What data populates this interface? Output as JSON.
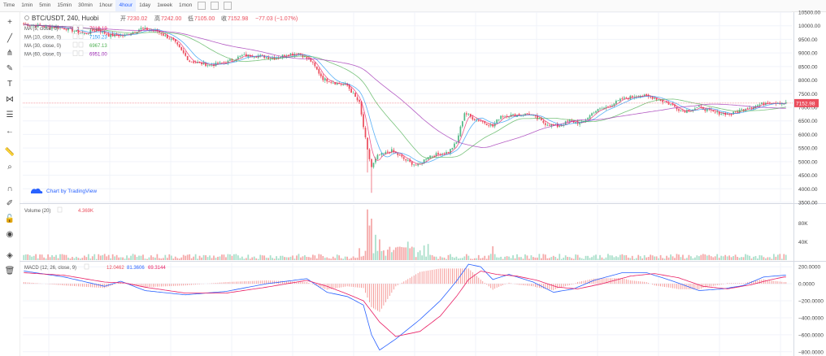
{
  "timeframes": [
    {
      "label": "Time",
      "active": false
    },
    {
      "label": "1min",
      "active": false
    },
    {
      "label": "5min",
      "active": false
    },
    {
      "label": "15min",
      "active": false
    },
    {
      "label": "30min",
      "active": false
    },
    {
      "label": "1hour",
      "active": false
    },
    {
      "label": "4hour",
      "active": true
    },
    {
      "label": "1day",
      "active": false
    },
    {
      "label": "1week",
      "active": false
    },
    {
      "label": "1mon",
      "active": false
    }
  ],
  "toolbar_icons": [
    "crosshair-icon",
    "trend-line-icon",
    "pitchfork-icon",
    "brush-icon",
    "text-icon",
    "pattern-icon",
    "fib-icon",
    "arrow-icon",
    "ruler-icon",
    "zoom-icon",
    "magnet-icon",
    "lock-drawings-icon",
    "lock-icon",
    "eye-icon",
    "layers-icon",
    "trash-icon"
  ],
  "legend": {
    "symbol": "BTC/USDT, 240, Huobi",
    "open_label": "开",
    "open": "7230.02",
    "high_label": "高",
    "high": "7242.00",
    "low_label": "低",
    "low": "7105.00",
    "close_label": "收",
    "close": "7152.98",
    "change": "−77.03 (−1.07%)"
  },
  "ma_legend": [
    {
      "label": "MA (5, close, 0)",
      "value": "7210.19",
      "color": "#e91e63"
    },
    {
      "label": "MA (10, close, 0)",
      "value": "7150.23",
      "color": "#2196f3"
    },
    {
      "label": "MA (30, close, 0)",
      "value": "6967.13",
      "color": "#4caf50"
    },
    {
      "label": "MA (60, close, 0)",
      "value": "6951.00",
      "color": "#9c27b0"
    }
  ],
  "watermark": "Chart by TradingView",
  "volume_legend": {
    "label": "Volume (20)",
    "value": "4.369K"
  },
  "macd_legend": {
    "label": "MACD (12, 26, close, 9)",
    "hist": "12.0462",
    "macd": "81.3606",
    "signal": "69.3144"
  },
  "price_tag": "7152.98",
  "colors": {
    "up": "#53b987",
    "down": "#eb4d5c",
    "up_vol": "#a9dfca",
    "down_vol": "#f5a8a8",
    "ma5": "#e91e63",
    "ma10": "#2196f3",
    "ma30": "#4caf50",
    "ma60": "#9c27b0",
    "macd": "#2962ff",
    "signal": "#e91e63",
    "hist": "#ef5350",
    "grid": "#f0f3fa"
  },
  "chart_data": [
    {
      "type": "candlestick",
      "title": "BTC/USDT, 240, Huobi",
      "y_ticks": [
        10500,
        10000,
        9500,
        9000,
        8500,
        8000,
        7500,
        7000,
        6500,
        6000,
        5500,
        5000,
        4500,
        4000,
        3500
      ],
      "y_tick_labels": [
        "10500.00",
        "10000.00",
        "9500.00",
        "9000.00",
        "8500.00",
        "8000.00",
        "7500.00",
        "7000.00",
        "6500.00",
        "6000.00",
        "5500.00",
        "5000.00",
        "4500.00",
        "4000.00",
        "3500.00"
      ],
      "ylim": [
        3500,
        10500
      ],
      "last_price": 7152.98,
      "close_keypoints": [
        [
          0,
          10050
        ],
        [
          10,
          9980
        ],
        [
          20,
          9920
        ],
        [
          30,
          9700
        ],
        [
          36,
          9880
        ],
        [
          42,
          9650
        ],
        [
          50,
          9650
        ],
        [
          58,
          9900
        ],
        [
          66,
          9800
        ],
        [
          74,
          9450
        ],
        [
          82,
          8700
        ],
        [
          92,
          8550
        ],
        [
          100,
          8650
        ],
        [
          108,
          8900
        ],
        [
          116,
          8900
        ],
        [
          124,
          8800
        ],
        [
          130,
          8950
        ],
        [
          136,
          9000
        ],
        [
          142,
          8700
        ],
        [
          148,
          8050
        ],
        [
          154,
          7900
        ],
        [
          160,
          7800
        ],
        [
          166,
          7150
        ],
        [
          170,
          5400
        ],
        [
          172,
          4800
        ],
        [
          175,
          5200
        ],
        [
          182,
          5400
        ],
        [
          190,
          5000
        ],
        [
          195,
          4850
        ],
        [
          200,
          5200
        ],
        [
          210,
          5350
        ],
        [
          214,
          5700
        ],
        [
          218,
          6800
        ],
        [
          222,
          6600
        ],
        [
          226,
          6500
        ],
        [
          232,
          6300
        ],
        [
          236,
          6700
        ],
        [
          240,
          6700
        ],
        [
          250,
          6750
        ],
        [
          258,
          6400
        ],
        [
          264,
          6300
        ],
        [
          270,
          6500
        ],
        [
          276,
          6400
        ],
        [
          282,
          6850
        ],
        [
          288,
          7000
        ],
        [
          296,
          7300
        ],
        [
          304,
          7450
        ],
        [
          312,
          7350
        ],
        [
          320,
          7100
        ],
        [
          326,
          6850
        ],
        [
          334,
          7000
        ],
        [
          342,
          6800
        ],
        [
          350,
          6750
        ],
        [
          356,
          6950
        ],
        [
          362,
          7050
        ],
        [
          368,
          7200
        ],
        [
          376,
          7150
        ]
      ],
      "low_spike": {
        "index": 172,
        "low": 3850
      }
    },
    {
      "type": "bar",
      "title": "Volume (20)",
      "y_tick_labels": [
        "80K",
        "40K"
      ],
      "y_ticks": [
        80000,
        40000
      ],
      "ylim": [
        0,
        120000
      ],
      "spikes": [
        [
          170,
          110000
        ],
        [
          171,
          75000
        ],
        [
          172,
          90000
        ],
        [
          174,
          55000
        ],
        [
          176,
          45000
        ],
        [
          190,
          40000
        ],
        [
          200,
          35000
        ],
        [
          232,
          30000
        ]
      ],
      "base_volume": 8000
    },
    {
      "type": "line",
      "title": "MACD (12, 26, close, 9)",
      "y_ticks": [
        200,
        0,
        -200,
        -400,
        -600,
        -800
      ],
      "y_tick_labels": [
        "200.0000",
        "0.0000",
        "−200.0000",
        "−400.0000",
        "−600.0000",
        "−800.0000"
      ],
      "ylim": [
        -850,
        250
      ],
      "series": [
        {
          "name": "MACD",
          "points": [
            [
              0,
              150
            ],
            [
              20,
              80
            ],
            [
              40,
              -30
            ],
            [
              48,
              30
            ],
            [
              60,
              -80
            ],
            [
              80,
              -130
            ],
            [
              100,
              -90
            ],
            [
              120,
              0
            ],
            [
              140,
              60
            ],
            [
              150,
              -100
            ],
            [
              160,
              -150
            ],
            [
              168,
              -250
            ],
            [
              172,
              -600
            ],
            [
              176,
              -780
            ],
            [
              184,
              -650
            ],
            [
              196,
              -420
            ],
            [
              206,
              -200
            ],
            [
              214,
              30
            ],
            [
              220,
              230
            ],
            [
              226,
              200
            ],
            [
              232,
              50
            ],
            [
              240,
              110
            ],
            [
              252,
              20
            ],
            [
              262,
              -100
            ],
            [
              272,
              -60
            ],
            [
              282,
              40
            ],
            [
              296,
              130
            ],
            [
              308,
              130
            ],
            [
              320,
              40
            ],
            [
              334,
              -80
            ],
            [
              346,
              -60
            ],
            [
              356,
              -20
            ],
            [
              366,
              80
            ],
            [
              376,
              100
            ]
          ]
        },
        {
          "name": "Signal",
          "points": [
            [
              0,
              130
            ],
            [
              20,
              100
            ],
            [
              40,
              20
            ],
            [
              50,
              10
            ],
            [
              60,
              -40
            ],
            [
              80,
              -110
            ],
            [
              100,
              -110
            ],
            [
              120,
              -40
            ],
            [
              140,
              40
            ],
            [
              150,
              -30
            ],
            [
              160,
              -120
            ],
            [
              168,
              -200
            ],
            [
              176,
              -450
            ],
            [
              184,
              -620
            ],
            [
              196,
              -560
            ],
            [
              206,
              -380
            ],
            [
              214,
              -150
            ],
            [
              220,
              50
            ],
            [
              226,
              150
            ],
            [
              234,
              110
            ],
            [
              244,
              90
            ],
            [
              254,
              40
            ],
            [
              264,
              -40
            ],
            [
              274,
              -60
            ],
            [
              286,
              0
            ],
            [
              300,
              90
            ],
            [
              312,
              120
            ],
            [
              324,
              70
            ],
            [
              336,
              -30
            ],
            [
              348,
              -60
            ],
            [
              360,
              -10
            ],
            [
              368,
              40
            ],
            [
              376,
              80
            ]
          ]
        }
      ]
    }
  ]
}
